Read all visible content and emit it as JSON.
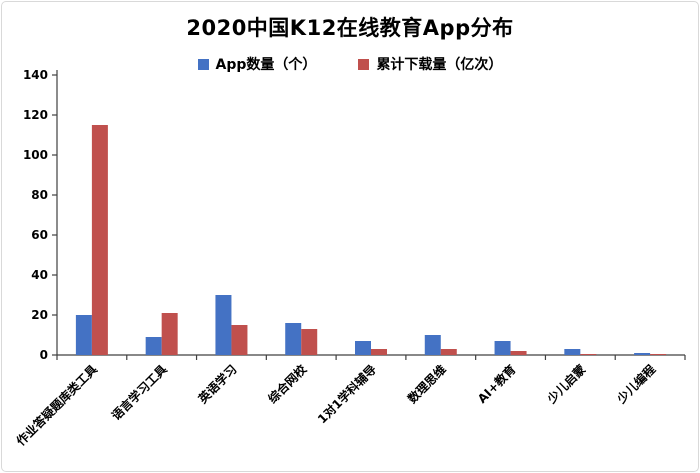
{
  "chart_data": {
    "type": "bar",
    "title": "2020中国K12在线教育App分布",
    "categories": [
      "作业答疑题库类工具",
      "语言学习工具",
      "英语学习",
      "综合网校",
      "1对1学科辅导",
      "数理思维",
      "AI+教育",
      "少儿启蒙",
      "少儿编程"
    ],
    "series": [
      {
        "name": "App数量（个）",
        "color": "#4472C4",
        "values": [
          20,
          9,
          30,
          16,
          7,
          10,
          7,
          3,
          1
        ]
      },
      {
        "name": "累计下载量（亿次）",
        "color": "#C0504D",
        "values": [
          115,
          21,
          15,
          13,
          3,
          3,
          2,
          0.5,
          0.3
        ]
      }
    ],
    "ylim": [
      0,
      140
    ],
    "ytick_step": 20,
    "grid": false,
    "legend_position": "top",
    "axis_color": "#404040",
    "text_color": "#000000"
  }
}
